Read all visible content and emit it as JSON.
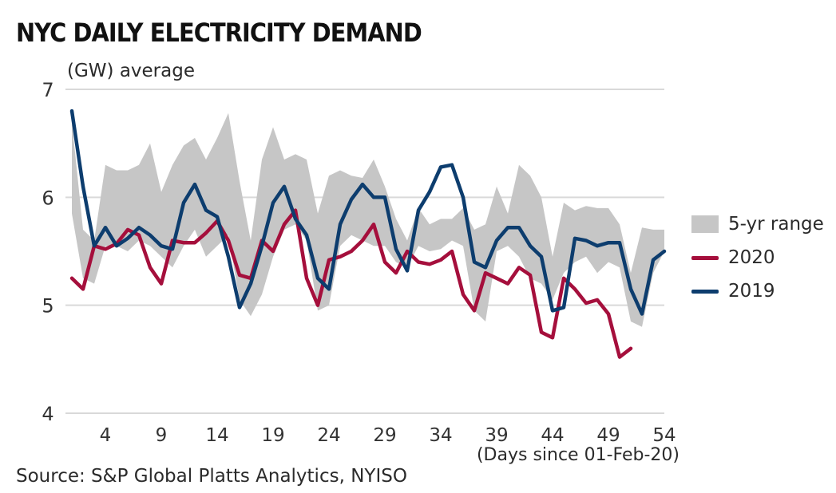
{
  "chart_data": {
    "type": "line",
    "title": "NYC DAILY ELECTRICITY DEMAND",
    "ylabel": "(GW) average",
    "xlabel": "(Days since 01-Feb-20)",
    "source": "Source: S&P Global Platts Analytics, NYISO",
    "ylim": [
      4,
      7
    ],
    "xlim": [
      1,
      54
    ],
    "yticks": [
      "4",
      "5",
      "6",
      "7"
    ],
    "xticks": [
      "4",
      "9",
      "14",
      "19",
      "24",
      "29",
      "34",
      "39",
      "44",
      "49",
      "54"
    ],
    "grid": "horizontal",
    "legend_position": "right",
    "range": {
      "name": "5-yr range",
      "color": "#c6c6c6",
      "x": [
        1,
        2,
        3,
        4,
        5,
        6,
        7,
        8,
        9,
        10,
        11,
        12,
        13,
        14,
        15,
        16,
        17,
        18,
        19,
        20,
        21,
        22,
        23,
        24,
        25,
        26,
        27,
        28,
        29,
        30,
        31,
        32,
        33,
        34,
        35,
        36,
        37,
        38,
        39,
        40,
        41,
        42,
        43,
        44,
        45,
        46,
        47,
        48,
        49,
        50,
        51,
        52,
        53,
        54
      ],
      "upper": [
        6.7,
        5.7,
        5.6,
        6.3,
        6.25,
        6.25,
        6.3,
        6.5,
        6.05,
        6.3,
        6.48,
        6.55,
        6.35,
        6.55,
        6.78,
        6.15,
        5.6,
        6.35,
        6.65,
        6.35,
        6.4,
        6.35,
        5.85,
        6.2,
        6.25,
        6.2,
        6.18,
        6.35,
        6.1,
        5.8,
        5.6,
        5.9,
        5.75,
        5.8,
        5.8,
        5.9,
        5.7,
        5.75,
        6.1,
        5.85,
        6.3,
        6.2,
        6.0,
        5.45,
        5.95,
        5.88,
        5.92,
        5.9,
        5.9,
        5.75,
        5.3,
        5.72,
        5.7,
        5.7
      ],
      "lower": [
        5.85,
        5.25,
        5.2,
        5.55,
        5.55,
        5.5,
        5.6,
        5.55,
        5.45,
        5.35,
        5.55,
        5.7,
        5.45,
        5.55,
        5.65,
        5.05,
        4.9,
        5.1,
        5.45,
        5.7,
        5.75,
        5.6,
        4.95,
        5.0,
        5.55,
        5.65,
        5.6,
        5.55,
        5.55,
        5.4,
        5.35,
        5.55,
        5.5,
        5.52,
        5.6,
        5.55,
        4.95,
        4.85,
        5.5,
        5.55,
        5.45,
        5.25,
        5.2,
        5.05,
        5.3,
        5.4,
        5.45,
        5.3,
        5.4,
        5.35,
        4.85,
        4.8,
        5.3,
        5.5
      ]
    },
    "series": [
      {
        "name": "2020",
        "color": "#a50f3c",
        "x": [
          1,
          2,
          3,
          4,
          5,
          6,
          7,
          8,
          9,
          10,
          11,
          12,
          13,
          14,
          15,
          16,
          17,
          18,
          19,
          20,
          21,
          22,
          23,
          24,
          25,
          26,
          27,
          28,
          29,
          30,
          31,
          32,
          33,
          34,
          35,
          36,
          37,
          38,
          39,
          40,
          41,
          42,
          43,
          44,
          45,
          46,
          47,
          48,
          49,
          50,
          51
        ],
        "values": [
          5.25,
          5.15,
          5.55,
          5.52,
          5.57,
          5.7,
          5.65,
          5.35,
          5.2,
          5.6,
          5.58,
          5.58,
          5.67,
          5.78,
          5.6,
          5.28,
          5.25,
          5.6,
          5.5,
          5.75,
          5.88,
          5.25,
          5.0,
          5.42,
          5.45,
          5.5,
          5.6,
          5.75,
          5.4,
          5.3,
          5.5,
          5.4,
          5.38,
          5.42,
          5.5,
          5.1,
          4.95,
          5.3,
          5.25,
          5.2,
          5.35,
          5.28,
          4.75,
          4.7,
          5.25,
          5.15,
          5.02,
          5.05,
          4.92,
          4.52,
          4.6
        ]
      },
      {
        "name": "2019",
        "color": "#0d3d6e",
        "x": [
          1,
          2,
          3,
          4,
          5,
          6,
          7,
          8,
          9,
          10,
          11,
          12,
          13,
          14,
          15,
          16,
          17,
          18,
          19,
          20,
          21,
          22,
          23,
          24,
          25,
          26,
          27,
          28,
          29,
          30,
          31,
          32,
          33,
          34,
          35,
          36,
          37,
          38,
          39,
          40,
          41,
          42,
          43,
          44,
          45,
          46,
          47,
          48,
          49,
          50,
          51,
          52,
          53,
          54
        ],
        "values": [
          6.8,
          6.1,
          5.55,
          5.72,
          5.55,
          5.62,
          5.72,
          5.65,
          5.55,
          5.52,
          5.95,
          6.12,
          5.88,
          5.82,
          5.45,
          4.98,
          5.2,
          5.55,
          5.95,
          6.1,
          5.8,
          5.65,
          5.25,
          5.15,
          5.75,
          5.98,
          6.12,
          6.0,
          6.0,
          5.52,
          5.32,
          5.88,
          6.05,
          6.28,
          6.3,
          6.0,
          5.4,
          5.35,
          5.6,
          5.72,
          5.72,
          5.55,
          5.45,
          4.95,
          4.98,
          5.62,
          5.6,
          5.55,
          5.58,
          5.58,
          5.15,
          4.92,
          5.42,
          5.5
        ]
      }
    ]
  }
}
